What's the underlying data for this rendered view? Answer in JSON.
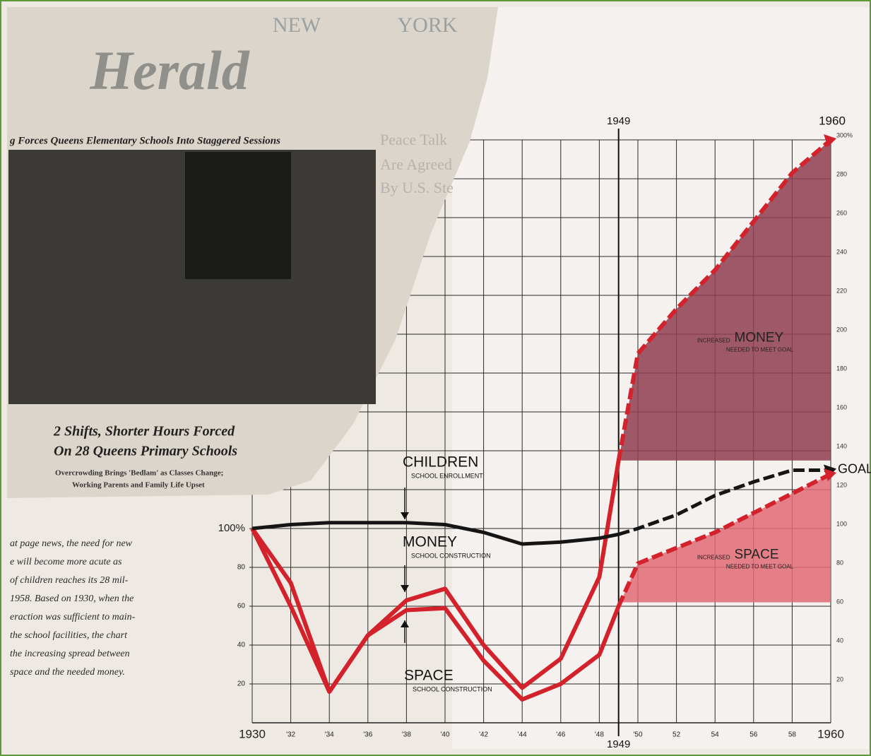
{
  "clipping": {
    "masthead": [
      "NEW",
      "YORK",
      "Herald"
    ],
    "banner": "g Forces Queens Elementary Schools Into Staggered Sessions",
    "headline": [
      "2 Shifts, Shorter Hours Forced",
      "On 28 Queens Primary Schools"
    ],
    "subhead": [
      "Overcrowding Brings 'Bedlam' as Classes Change;",
      "Working Parents and Family Life Upset"
    ],
    "side": [
      "Peace Talk",
      "Are Agreed",
      "By U.S. Ste"
    ],
    "paragraph": [
      "at page news, the need for new",
      "e will become more acute as",
      "of children reaches its 28 mil-",
      "1958. Based on 1930, when the",
      "eraction was sufficient to main-",
      "the school facilities, the chart",
      "the increasing spread between",
      "space and the needed money."
    ]
  },
  "chart_data": {
    "type": "line",
    "x": [
      1930,
      1932,
      1934,
      1936,
      1938,
      1940,
      1942,
      1944,
      1946,
      1948,
      1949,
      1950,
      1952,
      1954,
      1956,
      1958,
      1960
    ],
    "series": [
      {
        "name": "CHILDREN",
        "description": "SCHOOL ENROLLMENT",
        "color": "#151515",
        "values": [
          100,
          102,
          103,
          103,
          103,
          102,
          98,
          92,
          93,
          95,
          97,
          100,
          107,
          117,
          124,
          130,
          130
        ]
      },
      {
        "name": "MONEY",
        "description": "SCHOOL CONSTRUCTION",
        "color": "#d3222b",
        "area_color": "#8f3d50",
        "area_base": 135,
        "area_prefix": "INCREASED",
        "area_note": "NEEDED TO MEET GOAL",
        "values": [
          100,
          72,
          16,
          45,
          63,
          69,
          40,
          18,
          33,
          75,
          135,
          190,
          213,
          233,
          258,
          283,
          300
        ]
      },
      {
        "name": "SPACE",
        "description": "SCHOOL CONSTRUCTION",
        "color": "#d3222b",
        "area_color": "#e06a74",
        "area_base": 62,
        "area_prefix": "INCREASED",
        "area_note": "NEEDED TO MEET GOAL",
        "values": [
          100,
          60,
          16,
          45,
          58,
          59,
          32,
          12,
          20,
          35,
          60,
          82,
          90,
          98,
          108,
          118,
          128
        ]
      }
    ],
    "xlim": [
      1930,
      1960
    ],
    "ylim": [
      0,
      300
    ],
    "xticks": [
      {
        "value": 1930,
        "label": "1930"
      },
      {
        "value": 1932,
        "label": "'32"
      },
      {
        "value": 1934,
        "label": "'34"
      },
      {
        "value": 1936,
        "label": "'36"
      },
      {
        "value": 1938,
        "label": "'38"
      },
      {
        "value": 1940,
        "label": "'40"
      },
      {
        "value": 1942,
        "label": "'42"
      },
      {
        "value": 1944,
        "label": "'44"
      },
      {
        "value": 1946,
        "label": "'46"
      },
      {
        "value": 1948,
        "label": "'48"
      },
      {
        "value": 1950,
        "label": "'50"
      },
      {
        "value": 1952,
        "label": "52"
      },
      {
        "value": 1954,
        "label": "54"
      },
      {
        "value": 1956,
        "label": "56"
      },
      {
        "value": 1958,
        "label": "58"
      },
      {
        "value": 1960,
        "label": "1960"
      }
    ],
    "yticks": [
      20,
      40,
      60,
      80,
      {
        "value": 100,
        "label": "100%"
      }
    ],
    "y2lim": [
      0,
      300
    ],
    "y2ticks": [
      20,
      40,
      60,
      80,
      100,
      120,
      140,
      160,
      180,
      200,
      220,
      240,
      260,
      280,
      {
        "value": 300,
        "label": "300%"
      }
    ],
    "marker_x": {
      "value": 1949,
      "label": "1949"
    },
    "goal_label": "GOAL",
    "grid": true
  }
}
